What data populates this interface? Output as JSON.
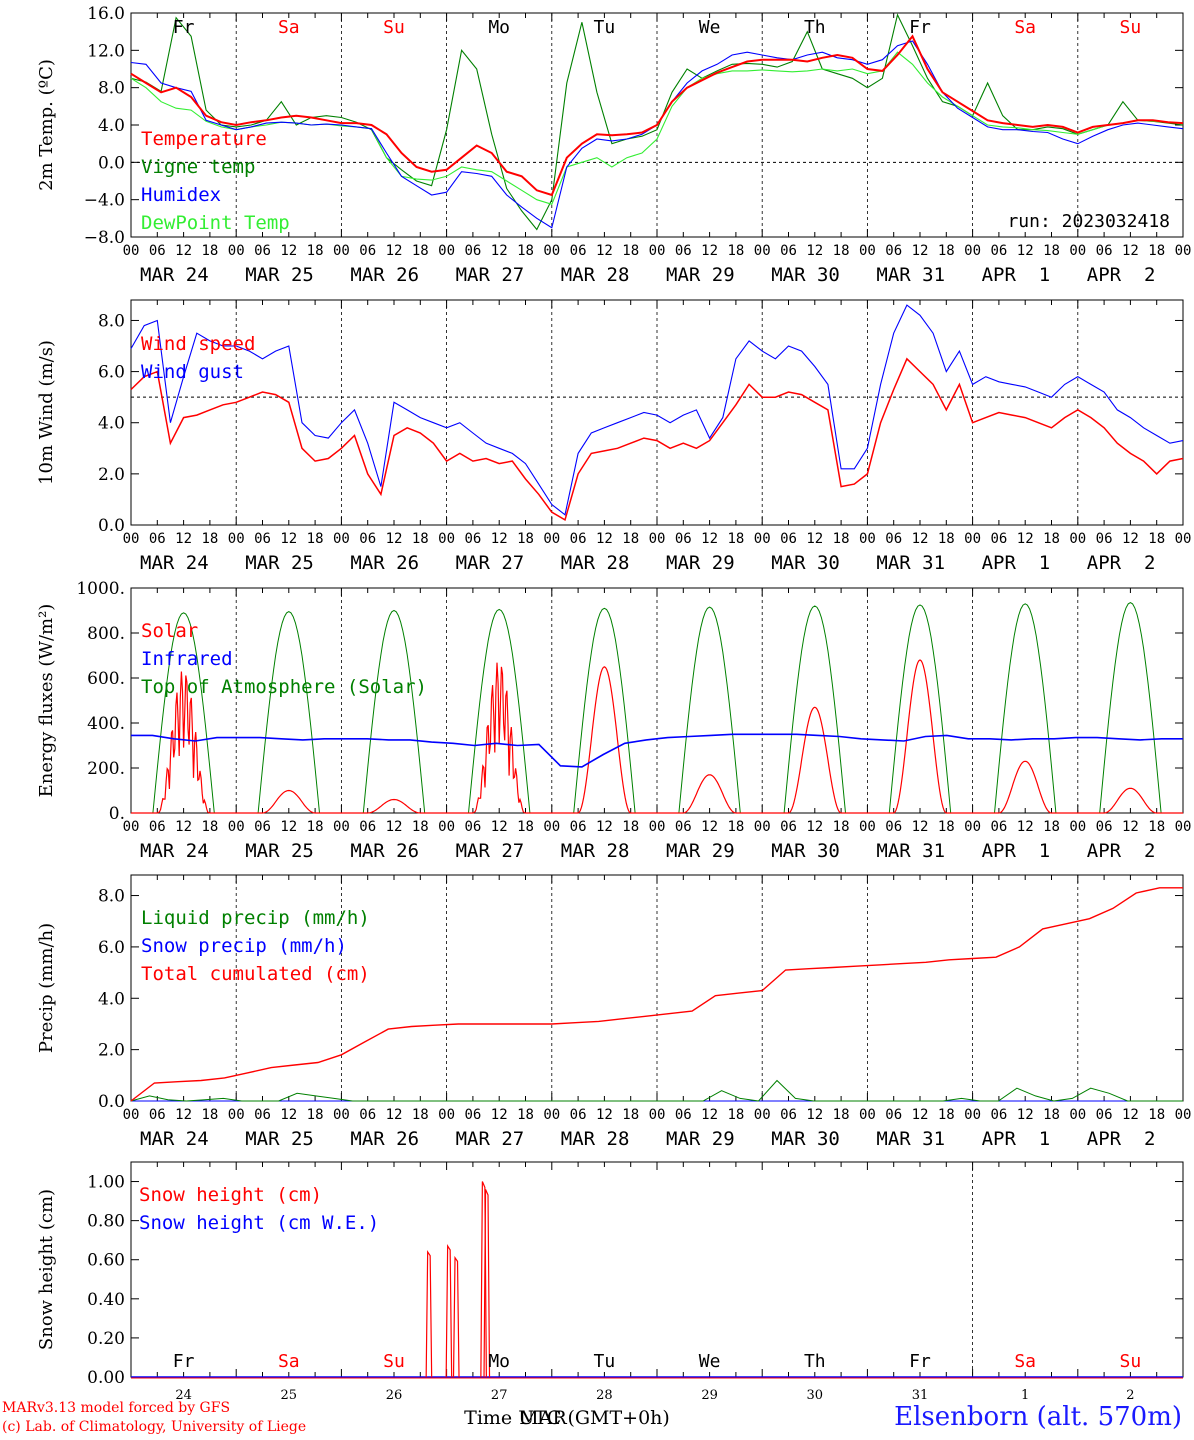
{
  "chart_data": [
    {
      "type": "line",
      "ylabel": "2m Temp. (ºC)",
      "ylim": [
        -8,
        16
      ],
      "yticks": [
        "16.0",
        "12.0",
        "8.0",
        "4.0",
        "0.0",
        "−4.0",
        "−8.0"
      ],
      "ytick_values": [
        16,
        12,
        8,
        4,
        0,
        -4,
        -8
      ],
      "zero_line": 0,
      "day_names": [
        "Fr",
        "Sa",
        "Su",
        "Mo",
        "Tu",
        "We",
        "Th",
        "Fr",
        "Sa",
        "Su"
      ],
      "annotation": "run: 2023032418",
      "series": [
        {
          "name": "Temperature",
          "color": "#ff0000",
          "values": [
            9.5,
            8.5,
            7.5,
            8.0,
            7.0,
            5.0,
            4.3,
            4.0,
            4.3,
            4.5,
            4.8,
            5.0,
            4.8,
            4.5,
            4.2,
            4.2,
            4.0,
            3.0,
            1.0,
            -0.5,
            -1.0,
            -0.8,
            0.5,
            1.8,
            1.0,
            -1.0,
            -1.5,
            -3.0,
            -3.5,
            0.5,
            2.0,
            3.0,
            2.9,
            3.0,
            3.2,
            4.0,
            6.5,
            8.0,
            8.8,
            9.6,
            10.2,
            10.8,
            11.0,
            11.0,
            11.0,
            10.8,
            11.2,
            11.5,
            11.2,
            10.0,
            9.8,
            11.5,
            13.5,
            10.0,
            7.5,
            6.5,
            5.5,
            4.5,
            4.2,
            4.0,
            3.8,
            4.0,
            3.8,
            3.2,
            3.8,
            4.0,
            4.2,
            4.5,
            4.5,
            4.3,
            4.2
          ]
        },
        {
          "name": "Vigne temp",
          "color": "#008000",
          "values": [
            9.0,
            8.6,
            7.6,
            15.5,
            13.5,
            5.6,
            4.0,
            3.8,
            4.0,
            4.5,
            6.5,
            4.0,
            4.8,
            5.0,
            4.8,
            4.3,
            3.5,
            0.5,
            -0.8,
            -2.0,
            -2.5,
            3.5,
            12.0,
            10.0,
            3.0,
            -2.8,
            -5.2,
            -7.2,
            -4.0,
            8.5,
            15.0,
            7.5,
            2.0,
            2.5,
            2.8,
            3.5,
            7.5,
            10.0,
            9.0,
            9.8,
            10.5,
            10.6,
            10.5,
            10.2,
            10.8,
            14.0,
            10.0,
            9.5,
            9.0,
            8.0,
            9.0,
            15.8,
            12.5,
            9.0,
            6.5,
            6.0,
            5.0,
            8.5,
            5.0,
            3.5,
            3.5,
            3.8,
            3.6,
            3.0,
            3.5,
            4.0,
            6.5,
            4.5,
            4.4,
            4.2,
            4.0
          ]
        },
        {
          "name": "Humidex",
          "color": "#0000ff",
          "values": [
            10.7,
            10.5,
            8.5,
            8.0,
            7.6,
            4.5,
            4.0,
            3.5,
            3.8,
            4.2,
            4.3,
            4.2,
            4.0,
            4.1,
            4.0,
            3.8,
            3.6,
            1.0,
            -1.5,
            -2.5,
            -3.5,
            -3.2,
            -1.0,
            -1.2,
            -1.5,
            -3.5,
            -4.8,
            -6.0,
            -7.0,
            -0.5,
            1.5,
            2.5,
            2.3,
            2.5,
            3.0,
            4.0,
            6.5,
            8.5,
            9.8,
            10.5,
            11.5,
            11.8,
            11.5,
            11.2,
            11.0,
            11.5,
            11.8,
            11.2,
            11.0,
            10.5,
            11.0,
            12.5,
            13.0,
            10.5,
            7.5,
            5.8,
            4.8,
            3.8,
            3.5,
            3.5,
            3.3,
            3.2,
            2.5,
            2.0,
            2.8,
            3.5,
            4.0,
            4.2,
            4.0,
            3.8,
            3.6
          ]
        },
        {
          "name": "DewPoint Temp",
          "color": "#33ee33",
          "values": [
            9.0,
            8.0,
            6.5,
            5.8,
            5.6,
            4.4,
            3.8,
            3.5,
            3.8,
            4.0,
            4.3,
            4.2,
            4.0,
            4.1,
            3.9,
            3.8,
            3.6,
            0.5,
            -1.5,
            -1.8,
            -1.9,
            -1.5,
            -0.5,
            -0.8,
            -1.0,
            -2.0,
            -3.0,
            -4.0,
            -4.5,
            -0.5,
            0.0,
            0.5,
            -0.5,
            0.5,
            1.0,
            2.5,
            6.0,
            8.0,
            9.0,
            9.5,
            9.8,
            9.8,
            9.9,
            9.8,
            9.7,
            9.8,
            10.0,
            9.8,
            10.0,
            9.5,
            9.8,
            11.8,
            10.5,
            8.5,
            7.0,
            6.0,
            5.0,
            4.0,
            3.8,
            3.7,
            3.5,
            3.4,
            3.2,
            3.0,
            3.5,
            4.0,
            4.2,
            4.5,
            4.4,
            4.3,
            4.2
          ]
        }
      ]
    },
    {
      "type": "line",
      "ylabel": "10m Wind (m/s)",
      "ylim": [
        0,
        8.8
      ],
      "yticks": [
        "8.0",
        "6.0",
        "4.0",
        "2.0",
        "0.0"
      ],
      "ytick_values": [
        8,
        6,
        4,
        2,
        0
      ],
      "ref_line": 5,
      "series": [
        {
          "name": "Wind speed",
          "color": "#ff0000",
          "values": [
            5.3,
            5.8,
            6.0,
            3.2,
            4.2,
            4.3,
            4.5,
            4.7,
            4.8,
            5.0,
            5.2,
            5.1,
            4.8,
            3.0,
            2.5,
            2.6,
            3.0,
            3.5,
            2.0,
            1.2,
            3.5,
            3.8,
            3.6,
            3.2,
            2.5,
            2.8,
            2.5,
            2.6,
            2.4,
            2.5,
            1.8,
            1.2,
            0.5,
            0.2,
            2.0,
            2.8,
            2.9,
            3.0,
            3.2,
            3.4,
            3.3,
            3.0,
            3.2,
            3.0,
            3.3,
            4.0,
            4.7,
            5.5,
            5.0,
            5.0,
            5.2,
            5.1,
            4.8,
            4.5,
            1.5,
            1.6,
            2.0,
            4.0,
            5.3,
            6.5,
            6.0,
            5.5,
            4.5,
            5.5,
            4.0,
            4.2,
            4.4,
            4.3,
            4.2,
            4.0,
            3.8,
            4.2,
            4.5,
            4.2,
            3.8,
            3.2,
            2.8,
            2.5,
            2.0,
            2.5,
            2.6
          ]
        },
        {
          "name": "Wind gust",
          "color": "#0000ff",
          "values": [
            6.9,
            7.8,
            8.0,
            4.0,
            5.8,
            7.5,
            7.2,
            7.0,
            7.0,
            6.8,
            6.5,
            6.8,
            7.0,
            4.0,
            3.5,
            3.4,
            4.0,
            4.5,
            3.2,
            1.5,
            4.8,
            4.5,
            4.2,
            4.0,
            3.8,
            4.0,
            3.6,
            3.2,
            3.0,
            2.8,
            2.4,
            1.6,
            0.8,
            0.4,
            2.8,
            3.6,
            3.8,
            4.0,
            4.2,
            4.4,
            4.3,
            4.0,
            4.3,
            4.5,
            3.4,
            4.2,
            6.5,
            7.2,
            6.8,
            6.5,
            7.0,
            6.8,
            6.2,
            5.5,
            2.2,
            2.2,
            3.0,
            5.5,
            7.5,
            8.6,
            8.2,
            7.5,
            6.0,
            6.8,
            5.5,
            5.8,
            5.6,
            5.5,
            5.4,
            5.2,
            5.0,
            5.5,
            5.8,
            5.5,
            5.2,
            4.5,
            4.2,
            3.8,
            3.5,
            3.2,
            3.3
          ]
        }
      ]
    },
    {
      "type": "line",
      "ylabel": "Energy fluxes (W/m²)",
      "ylim": [
        0,
        1000
      ],
      "yticks": [
        "1000.",
        "800.",
        "600.",
        "400.",
        "200.",
        "0."
      ],
      "ytick_values": [
        1000,
        800,
        600,
        400,
        200,
        0
      ],
      "series": [
        {
          "name": "Solar",
          "color": "#ff0000",
          "peaks": [
            640,
            100,
            60,
            680,
            650,
            170,
            470,
            680,
            230,
            110
          ]
        },
        {
          "name": "Infrared",
          "color": "#0000ff",
          "values": [
            345,
            345,
            330,
            320,
            335,
            335,
            335,
            330,
            325,
            330,
            330,
            330,
            325,
            325,
            315,
            310,
            300,
            310,
            300,
            305,
            210,
            205,
            260,
            310,
            325,
            335,
            340,
            345,
            350,
            350,
            350,
            350,
            345,
            340,
            330,
            325,
            320,
            340,
            345,
            330,
            330,
            325,
            330,
            330,
            335,
            335,
            330,
            325,
            330,
            330
          ]
        },
        {
          "name": "Top of Atmosphere (Solar)",
          "color": "#008000",
          "peaks": [
            890,
            895,
            900,
            905,
            910,
            915,
            920,
            925,
            930,
            935
          ]
        }
      ]
    },
    {
      "type": "line",
      "ylabel": "Precip (mm/h)",
      "ylim": [
        0,
        8.8
      ],
      "yticks": [
        "8.0",
        "6.0",
        "4.0",
        "2.0",
        "0.0"
      ],
      "ytick_values": [
        8,
        6,
        4,
        2,
        0
      ],
      "series": [
        {
          "name": "Liquid precip (mm/h)",
          "color": "#008000",
          "values": [
            0.0,
            0.2,
            0.05,
            0.0,
            0.05,
            0.1,
            0.0,
            0.0,
            0.0,
            0.3,
            0.2,
            0.1,
            0.0,
            0.0,
            0.0,
            0.0,
            0.0,
            0.0,
            0.0,
            0.0,
            0.0,
            0.0,
            0.0,
            0.0,
            0.0,
            0.0,
            0.0,
            0.0,
            0.0,
            0.0,
            0.0,
            0.0,
            0.4,
            0.1,
            0.0,
            0.8,
            0.1,
            0.0,
            0.0,
            0.0,
            0.0,
            0.0,
            0.0,
            0.0,
            0.0,
            0.1,
            0.0,
            0.0,
            0.5,
            0.2,
            0.0,
            0.1,
            0.5,
            0.3,
            0.0,
            0.0,
            0.0,
            0.0
          ]
        },
        {
          "name": "Snow precip (mm/h)",
          "color": "#0000ff",
          "values": [
            0,
            0,
            0,
            0,
            0,
            0,
            0,
            0,
            0,
            0,
            0,
            0,
            0,
            0,
            0,
            0,
            0,
            0,
            0,
            0,
            0,
            0,
            0,
            0,
            0,
            0,
            0,
            0,
            0,
            0,
            0,
            0,
            0,
            0,
            0,
            0,
            0,
            0,
            0,
            0,
            0,
            0,
            0,
            0,
            0,
            0,
            0,
            0,
            0,
            0,
            0,
            0,
            0,
            0,
            0,
            0,
            0,
            0
          ]
        },
        {
          "name": "Total cumulated (cm)",
          "color": "#ff0000",
          "values": [
            0.0,
            0.7,
            0.75,
            0.8,
            0.9,
            1.1,
            1.3,
            1.4,
            1.5,
            1.8,
            2.3,
            2.8,
            2.9,
            2.95,
            3.0,
            3.0,
            3.0,
            3.0,
            3.0,
            3.05,
            3.1,
            3.2,
            3.3,
            3.4,
            3.5,
            4.1,
            4.2,
            4.3,
            5.1,
            5.15,
            5.2,
            5.25,
            5.3,
            5.35,
            5.4,
            5.5,
            5.55,
            5.6,
            6.0,
            6.7,
            6.9,
            7.1,
            7.5,
            8.1,
            8.3,
            8.3
          ]
        }
      ]
    },
    {
      "type": "line",
      "ylabel": "Snow height (cm)",
      "xlabel": "Time UTC (GMT+0h)",
      "xlabel_overlap": "MAR",
      "ylim": [
        0,
        1.1
      ],
      "yticks": [
        "1.00",
        "0.80",
        "0.60",
        "0.40",
        "0.20",
        "0.00"
      ],
      "ytick_values": [
        1.0,
        0.8,
        0.6,
        0.4,
        0.2,
        0.0
      ],
      "day_names": [
        "Fr",
        "Sa",
        "Su",
        "Mo",
        "Tu",
        "We",
        "Th",
        "Fr",
        "Sa",
        "Su"
      ],
      "day_numbers": [
        "24",
        "25",
        "26",
        "27",
        "28",
        "29",
        "30",
        "31",
        "1",
        "2"
      ],
      "series": [
        {
          "name": "Snow height (cm)",
          "color": "#ff0000",
          "spikes": [
            {
              "day": 2.82,
              "value": 0.64
            },
            {
              "day": 3.01,
              "value": 0.67
            },
            {
              "day": 3.08,
              "value": 0.61
            },
            {
              "day": 3.34,
              "value": 1.0
            },
            {
              "day": 3.37,
              "value": 0.96
            }
          ]
        },
        {
          "name": "Snow height (cm W.E.)",
          "color": "#0000ff",
          "values": [
            0,
            0
          ]
        }
      ]
    }
  ],
  "x_axis": {
    "hour_ticks": [
      "00",
      "06",
      "12",
      "18"
    ],
    "end_tick": "00",
    "date_labels": [
      "MAR 24",
      "MAR 25",
      "MAR 26",
      "MAR 27",
      "MAR 28",
      "MAR 29",
      "MAR 30",
      "MAR 31",
      "APR  1",
      "APR  2"
    ]
  },
  "colors": {
    "weekday": "#000000",
    "weekend": "#ff0000"
  },
  "footer": {
    "model": "MARv3.13 model forced by GFS",
    "credit": "(c) Lab. of Climatology, University of Liege",
    "station": "Elsenborn (alt. 570m)"
  }
}
